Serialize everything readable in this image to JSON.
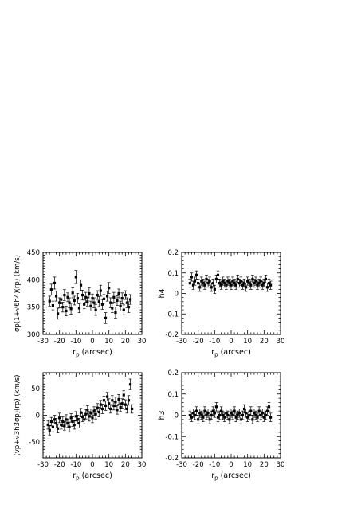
{
  "chart_data": [
    {
      "type": "scatter",
      "id": "sigma",
      "xlabel_main": "r",
      "xlabel_sub": "p",
      "xlabel_unit": "(arcsec)",
      "ylabel": "σp(1+√6h4)(rp) (km/s)",
      "xlim": [
        -30,
        30
      ],
      "ylim": [
        300,
        450
      ],
      "xticks": [
        -30,
        -20,
        -10,
        0,
        10,
        20,
        30
      ],
      "yticks": [
        300,
        350,
        400,
        450
      ],
      "grid": false,
      "points": [
        {
          "x": -26,
          "y": 361,
          "e": 9
        },
        {
          "x": -25,
          "y": 382,
          "e": 10
        },
        {
          "x": -24,
          "y": 353,
          "e": 8
        },
        {
          "x": -23,
          "y": 394,
          "e": 11
        },
        {
          "x": -22,
          "y": 370,
          "e": 9
        },
        {
          "x": -21,
          "y": 338,
          "e": 10
        },
        {
          "x": -20,
          "y": 358,
          "e": 9
        },
        {
          "x": -19,
          "y": 364,
          "e": 8
        },
        {
          "x": -18,
          "y": 350,
          "e": 9
        },
        {
          "x": -17,
          "y": 372,
          "e": 10
        },
        {
          "x": -16,
          "y": 343,
          "e": 9
        },
        {
          "x": -15,
          "y": 368,
          "e": 8
        },
        {
          "x": -14,
          "y": 358,
          "e": 9
        },
        {
          "x": -13,
          "y": 347,
          "e": 10
        },
        {
          "x": -12,
          "y": 376,
          "e": 9
        },
        {
          "x": -11,
          "y": 362,
          "e": 8
        },
        {
          "x": -10,
          "y": 405,
          "e": 12
        },
        {
          "x": -9,
          "y": 366,
          "e": 9
        },
        {
          "x": -8,
          "y": 348,
          "e": 8
        },
        {
          "x": -7,
          "y": 390,
          "e": 10
        },
        {
          "x": -6,
          "y": 372,
          "e": 9
        },
        {
          "x": -5,
          "y": 355,
          "e": 8
        },
        {
          "x": -4,
          "y": 368,
          "e": 9
        },
        {
          "x": -3,
          "y": 360,
          "e": 8
        },
        {
          "x": -2,
          "y": 375,
          "e": 10
        },
        {
          "x": -1,
          "y": 352,
          "e": 9
        },
        {
          "x": 0,
          "y": 366,
          "e": 8
        },
        {
          "x": 1,
          "y": 358,
          "e": 9
        },
        {
          "x": 2,
          "y": 345,
          "e": 10
        },
        {
          "x": 3,
          "y": 372,
          "e": 8
        },
        {
          "x": 4,
          "y": 360,
          "e": 9
        },
        {
          "x": 5,
          "y": 380,
          "e": 10
        },
        {
          "x": 6,
          "y": 355,
          "e": 9
        },
        {
          "x": 7,
          "y": 365,
          "e": 8
        },
        {
          "x": 8,
          "y": 330,
          "e": 10
        },
        {
          "x": 9,
          "y": 370,
          "e": 9
        },
        {
          "x": 10,
          "y": 385,
          "e": 10
        },
        {
          "x": 11,
          "y": 358,
          "e": 9
        },
        {
          "x": 12,
          "y": 348,
          "e": 8
        },
        {
          "x": 13,
          "y": 368,
          "e": 9
        },
        {
          "x": 14,
          "y": 340,
          "e": 10
        },
        {
          "x": 15,
          "y": 362,
          "e": 9
        },
        {
          "x": 16,
          "y": 375,
          "e": 8
        },
        {
          "x": 17,
          "y": 352,
          "e": 9
        },
        {
          "x": 18,
          "y": 366,
          "e": 10
        },
        {
          "x": 19,
          "y": 345,
          "e": 9
        },
        {
          "x": 20,
          "y": 372,
          "e": 8
        },
        {
          "x": 21,
          "y": 358,
          "e": 9
        },
        {
          "x": 22,
          "y": 350,
          "e": 10
        },
        {
          "x": 23,
          "y": 364,
          "e": 9
        }
      ]
    },
    {
      "type": "scatter",
      "id": "h4",
      "xlabel_main": "r",
      "xlabel_sub": "p",
      "xlabel_unit": "(arcsec)",
      "ylabel": "h4",
      "xlim": [
        -30,
        30
      ],
      "ylim": [
        -0.2,
        0.2
      ],
      "xticks": [
        -30,
        -20,
        -10,
        0,
        10,
        20,
        30
      ],
      "yticks": [
        -0.2,
        -0.1,
        0,
        0.1,
        0.2
      ],
      "ytick_labels": [
        "-0.2",
        "-0.1",
        "0",
        "0.1",
        "0.2"
      ],
      "grid": false,
      "points": [
        {
          "x": -25,
          "y": 0.05,
          "e": 0.02
        },
        {
          "x": -24,
          "y": 0.08,
          "e": 0.02
        },
        {
          "x": -23,
          "y": 0.04,
          "e": 0.02
        },
        {
          "x": -22,
          "y": 0.06,
          "e": 0.02
        },
        {
          "x": -21,
          "y": 0.09,
          "e": 0.02
        },
        {
          "x": -20,
          "y": 0.05,
          "e": 0.02
        },
        {
          "x": -19,
          "y": 0.03,
          "e": 0.02
        },
        {
          "x": -18,
          "y": 0.06,
          "e": 0.02
        },
        {
          "x": -17,
          "y": 0.05,
          "e": 0.02
        },
        {
          "x": -16,
          "y": 0.04,
          "e": 0.02
        },
        {
          "x": -15,
          "y": 0.07,
          "e": 0.02
        },
        {
          "x": -14,
          "y": 0.05,
          "e": 0.02
        },
        {
          "x": -13,
          "y": 0.06,
          "e": 0.02
        },
        {
          "x": -12,
          "y": 0.03,
          "e": 0.02
        },
        {
          "x": -11,
          "y": 0.05,
          "e": 0.02
        },
        {
          "x": -10,
          "y": 0.02,
          "e": 0.02
        },
        {
          "x": -9,
          "y": 0.07,
          "e": 0.02
        },
        {
          "x": -8,
          "y": 0.09,
          "e": 0.02
        },
        {
          "x": -7,
          "y": 0.05,
          "e": 0.02
        },
        {
          "x": -6,
          "y": 0.04,
          "e": 0.02
        },
        {
          "x": -5,
          "y": 0.06,
          "e": 0.02
        },
        {
          "x": -4,
          "y": 0.05,
          "e": 0.02
        },
        {
          "x": -3,
          "y": 0.04,
          "e": 0.02
        },
        {
          "x": -2,
          "y": 0.06,
          "e": 0.02
        },
        {
          "x": -1,
          "y": 0.05,
          "e": 0.02
        },
        {
          "x": 0,
          "y": 0.04,
          "e": 0.02
        },
        {
          "x": 1,
          "y": 0.06,
          "e": 0.02
        },
        {
          "x": 2,
          "y": 0.05,
          "e": 0.02
        },
        {
          "x": 3,
          "y": 0.04,
          "e": 0.02
        },
        {
          "x": 4,
          "y": 0.07,
          "e": 0.02
        },
        {
          "x": 5,
          "y": 0.05,
          "e": 0.02
        },
        {
          "x": 6,
          "y": 0.06,
          "e": 0.02
        },
        {
          "x": 7,
          "y": 0.04,
          "e": 0.02
        },
        {
          "x": 8,
          "y": 0.05,
          "e": 0.02
        },
        {
          "x": 9,
          "y": 0.03,
          "e": 0.02
        },
        {
          "x": 10,
          "y": 0.06,
          "e": 0.02
        },
        {
          "x": 11,
          "y": 0.05,
          "e": 0.02
        },
        {
          "x": 12,
          "y": 0.04,
          "e": 0.02
        },
        {
          "x": 13,
          "y": 0.07,
          "e": 0.02
        },
        {
          "x": 14,
          "y": 0.05,
          "e": 0.02
        },
        {
          "x": 15,
          "y": 0.06,
          "e": 0.02
        },
        {
          "x": 16,
          "y": 0.04,
          "e": 0.02
        },
        {
          "x": 17,
          "y": 0.05,
          "e": 0.02
        },
        {
          "x": 18,
          "y": 0.06,
          "e": 0.02
        },
        {
          "x": 19,
          "y": 0.04,
          "e": 0.02
        },
        {
          "x": 20,
          "y": 0.05,
          "e": 0.02
        },
        {
          "x": 21,
          "y": 0.07,
          "e": 0.02
        },
        {
          "x": 22,
          "y": 0.03,
          "e": 0.02
        },
        {
          "x": 23,
          "y": 0.05,
          "e": 0.02
        },
        {
          "x": 24,
          "y": 0.04,
          "e": 0.02
        }
      ]
    },
    {
      "type": "scatter",
      "id": "velocity",
      "xlabel_main": "r",
      "xlabel_sub": "p",
      "xlabel_unit": "(arcsec)",
      "ylabel": "(vp+√3h3σp)(rp) (km/s)",
      "xlim": [
        -30,
        30
      ],
      "ylim": [
        -80,
        80
      ],
      "xticks": [
        -30,
        -20,
        -10,
        0,
        10,
        20,
        30
      ],
      "yticks": [
        -50,
        0,
        50
      ],
      "grid": false,
      "points": [
        {
          "x": -27,
          "y": -18,
          "e": 8
        },
        {
          "x": -26,
          "y": -28,
          "e": 9
        },
        {
          "x": -25,
          "y": -12,
          "e": 8
        },
        {
          "x": -24,
          "y": -22,
          "e": 9
        },
        {
          "x": -23,
          "y": -8,
          "e": 8
        },
        {
          "x": -22,
          "y": -15,
          "e": 9
        },
        {
          "x": -21,
          "y": -25,
          "e": 8
        },
        {
          "x": -20,
          "y": -5,
          "e": 9
        },
        {
          "x": -19,
          "y": -18,
          "e": 8
        },
        {
          "x": -18,
          "y": -12,
          "e": 9
        },
        {
          "x": -17,
          "y": -20,
          "e": 8
        },
        {
          "x": -16,
          "y": -8,
          "e": 9
        },
        {
          "x": -15,
          "y": -15,
          "e": 8
        },
        {
          "x": -14,
          "y": -22,
          "e": 9
        },
        {
          "x": -13,
          "y": -5,
          "e": 8
        },
        {
          "x": -12,
          "y": -12,
          "e": 9
        },
        {
          "x": -11,
          "y": -18,
          "e": 8
        },
        {
          "x": -10,
          "y": -2,
          "e": 9
        },
        {
          "x": -9,
          "y": -8,
          "e": 8
        },
        {
          "x": -8,
          "y": -15,
          "e": 9
        },
        {
          "x": -7,
          "y": 5,
          "e": 8
        },
        {
          "x": -6,
          "y": -3,
          "e": 9
        },
        {
          "x": -5,
          "y": -8,
          "e": 8
        },
        {
          "x": -4,
          "y": 2,
          "e": 9
        },
        {
          "x": -3,
          "y": 10,
          "e": 8
        },
        {
          "x": -2,
          "y": -2,
          "e": 9
        },
        {
          "x": -1,
          "y": 4,
          "e": 8
        },
        {
          "x": 0,
          "y": -5,
          "e": 9
        },
        {
          "x": 1,
          "y": 8,
          "e": 8
        },
        {
          "x": 2,
          "y": 2,
          "e": 9
        },
        {
          "x": 3,
          "y": 14,
          "e": 8
        },
        {
          "x": 4,
          "y": 6,
          "e": 9
        },
        {
          "x": 5,
          "y": 20,
          "e": 8
        },
        {
          "x": 6,
          "y": 12,
          "e": 9
        },
        {
          "x": 7,
          "y": 28,
          "e": 8
        },
        {
          "x": 8,
          "y": 18,
          "e": 9
        },
        {
          "x": 9,
          "y": 35,
          "e": 8
        },
        {
          "x": 10,
          "y": 22,
          "e": 9
        },
        {
          "x": 11,
          "y": 12,
          "e": 8
        },
        {
          "x": 12,
          "y": 28,
          "e": 9
        },
        {
          "x": 13,
          "y": 18,
          "e": 8
        },
        {
          "x": 14,
          "y": 25,
          "e": 9
        },
        {
          "x": 15,
          "y": 10,
          "e": 8
        },
        {
          "x": 16,
          "y": 30,
          "e": 9
        },
        {
          "x": 17,
          "y": 15,
          "e": 8
        },
        {
          "x": 18,
          "y": 22,
          "e": 9
        },
        {
          "x": 19,
          "y": 38,
          "e": 8
        },
        {
          "x": 20,
          "y": 20,
          "e": 9
        },
        {
          "x": 21,
          "y": 12,
          "e": 8
        },
        {
          "x": 22,
          "y": 28,
          "e": 9
        },
        {
          "x": 23,
          "y": 58,
          "e": 10
        },
        {
          "x": 24,
          "y": 12,
          "e": 8
        }
      ]
    },
    {
      "type": "scatter",
      "id": "h3",
      "xlabel_main": "r",
      "xlabel_sub": "p",
      "xlabel_unit": "(arcsec)",
      "ylabel": "h3",
      "xlim": [
        -30,
        30
      ],
      "ylim": [
        -0.2,
        0.2
      ],
      "xticks": [
        -30,
        -20,
        -10,
        0,
        10,
        20,
        30
      ],
      "yticks": [
        -0.2,
        -0.1,
        0,
        0.1,
        0.2
      ],
      "ytick_labels": [
        "-0.2",
        "-0.1",
        "0",
        "0.1",
        "0.2"
      ],
      "grid": false,
      "points": [
        {
          "x": -25,
          "y": 0.0,
          "e": 0.02
        },
        {
          "x": -24,
          "y": -0.01,
          "e": 0.02
        },
        {
          "x": -23,
          "y": 0.01,
          "e": 0.02
        },
        {
          "x": -22,
          "y": 0.0,
          "e": 0.02
        },
        {
          "x": -21,
          "y": 0.02,
          "e": 0.02
        },
        {
          "x": -20,
          "y": -0.02,
          "e": 0.02
        },
        {
          "x": -19,
          "y": 0.01,
          "e": 0.02
        },
        {
          "x": -18,
          "y": 0.0,
          "e": 0.02
        },
        {
          "x": -17,
          "y": -0.01,
          "e": 0.02
        },
        {
          "x": -16,
          "y": 0.02,
          "e": 0.02
        },
        {
          "x": -15,
          "y": 0.0,
          "e": 0.02
        },
        {
          "x": -14,
          "y": 0.01,
          "e": 0.02
        },
        {
          "x": -13,
          "y": -0.02,
          "e": 0.02
        },
        {
          "x": -12,
          "y": 0.0,
          "e": 0.02
        },
        {
          "x": -11,
          "y": 0.02,
          "e": 0.02
        },
        {
          "x": -10,
          "y": 0.01,
          "e": 0.02
        },
        {
          "x": -9,
          "y": 0.04,
          "e": 0.02
        },
        {
          "x": -8,
          "y": -0.01,
          "e": 0.02
        },
        {
          "x": -7,
          "y": 0.0,
          "e": 0.02
        },
        {
          "x": -6,
          "y": 0.02,
          "e": 0.02
        },
        {
          "x": -5,
          "y": 0.0,
          "e": 0.02
        },
        {
          "x": -4,
          "y": -0.01,
          "e": 0.02
        },
        {
          "x": -3,
          "y": 0.01,
          "e": 0.02
        },
        {
          "x": -2,
          "y": 0.0,
          "e": 0.02
        },
        {
          "x": -1,
          "y": -0.02,
          "e": 0.02
        },
        {
          "x": 0,
          "y": 0.01,
          "e": 0.02
        },
        {
          "x": 1,
          "y": 0.0,
          "e": 0.02
        },
        {
          "x": 2,
          "y": 0.02,
          "e": 0.02
        },
        {
          "x": 3,
          "y": -0.01,
          "e": 0.02
        },
        {
          "x": 4,
          "y": 0.0,
          "e": 0.02
        },
        {
          "x": 5,
          "y": 0.01,
          "e": 0.02
        },
        {
          "x": 6,
          "y": -0.02,
          "e": 0.02
        },
        {
          "x": 7,
          "y": 0.0,
          "e": 0.02
        },
        {
          "x": 8,
          "y": 0.03,
          "e": 0.02
        },
        {
          "x": 9,
          "y": 0.01,
          "e": 0.02
        },
        {
          "x": 10,
          "y": -0.01,
          "e": 0.02
        },
        {
          "x": 11,
          "y": 0.0,
          "e": 0.02
        },
        {
          "x": 12,
          "y": 0.02,
          "e": 0.02
        },
        {
          "x": 13,
          "y": -0.02,
          "e": 0.02
        },
        {
          "x": 14,
          "y": 0.01,
          "e": 0.02
        },
        {
          "x": 15,
          "y": 0.0,
          "e": 0.02
        },
        {
          "x": 16,
          "y": -0.01,
          "e": 0.02
        },
        {
          "x": 17,
          "y": 0.02,
          "e": 0.02
        },
        {
          "x": 18,
          "y": 0.0,
          "e": 0.02
        },
        {
          "x": 19,
          "y": 0.01,
          "e": 0.02
        },
        {
          "x": 20,
          "y": -0.01,
          "e": 0.02
        },
        {
          "x": 21,
          "y": 0.0,
          "e": 0.02
        },
        {
          "x": 22,
          "y": 0.02,
          "e": 0.02
        },
        {
          "x": 23,
          "y": 0.04,
          "e": 0.02
        },
        {
          "x": 24,
          "y": -0.01,
          "e": 0.02
        }
      ]
    }
  ]
}
